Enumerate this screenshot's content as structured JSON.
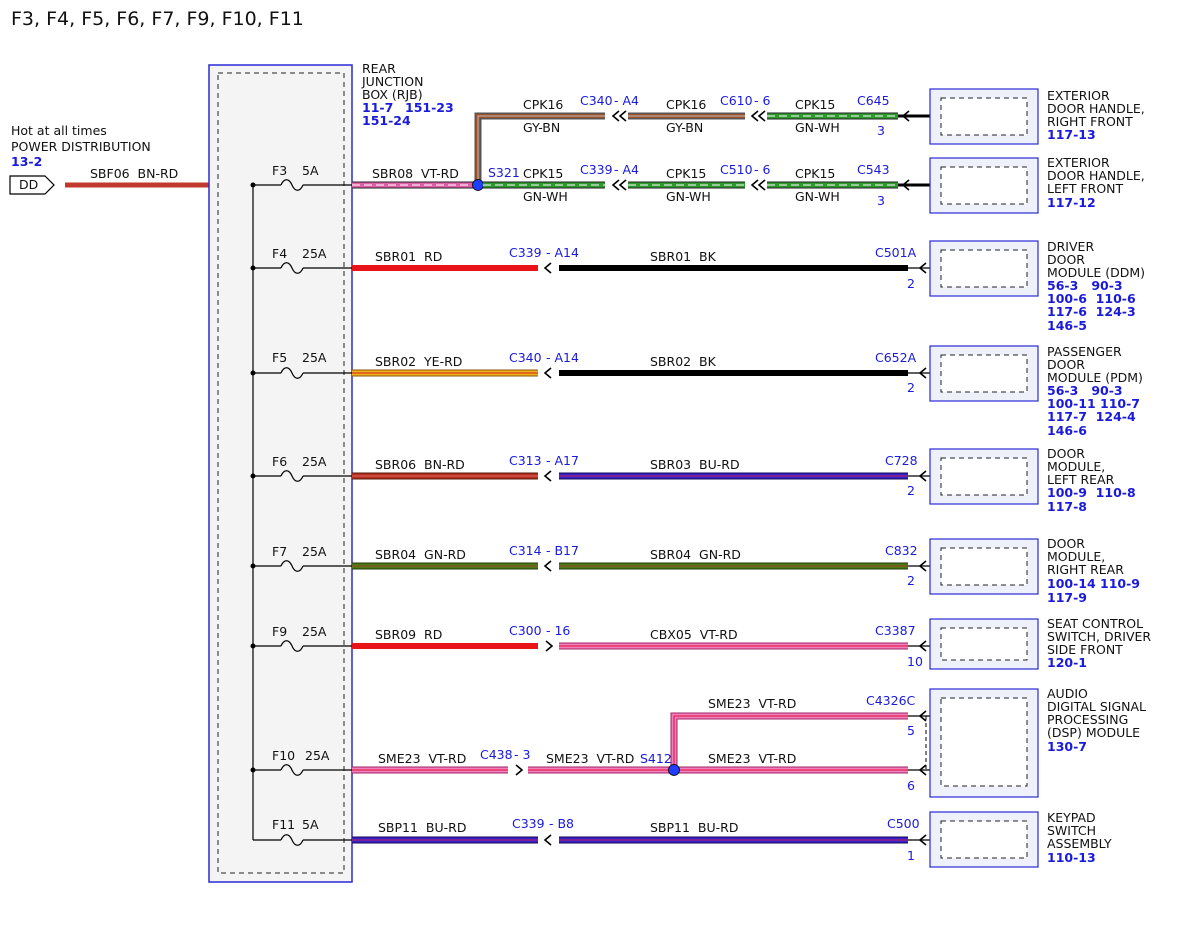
{
  "title": "F3, F4, F5, F6, F7, F9, F10, F11",
  "source": {
    "line1": "Hot at all times",
    "line2": "POWER DISTRIBUTION",
    "ref": "13-2",
    "connector": "DD",
    "wire": "SBF06  BN-RD"
  },
  "rjb": {
    "lines": [
      "REAR",
      "JUNCTION",
      "BOX (RJB)"
    ],
    "refs_line1a": "11-7",
    "refs_line1b": "151-23",
    "refs_line2": "151-24"
  },
  "fuses": [
    {
      "label": "F3",
      "amps": "5A"
    },
    {
      "label": "F4",
      "amps": "25A"
    },
    {
      "label": "F5",
      "amps": "25A"
    },
    {
      "label": "F6",
      "amps": "25A"
    },
    {
      "label": "F7",
      "amps": "25A"
    },
    {
      "label": "F9",
      "amps": "25A"
    },
    {
      "label": "F10",
      "amps": "25A"
    },
    {
      "label": "F11",
      "amps": "5A"
    }
  ],
  "wires": {
    "f3": "SBR08  VT-RD",
    "f4a": "SBR01  RD",
    "f4b": "SBR01  BK",
    "f5a": "SBR02  YE-RD",
    "f5b": "SBR02  BK",
    "f6a": "SBR06  BN-RD",
    "f6b": "SBR03  BU-RD",
    "f7a": "SBR04  GN-RD",
    "f7b": "SBR04  GN-RD",
    "f9a": "SBR09  RD",
    "f9b": "CBX05  VT-RD",
    "f10a": "SME23  VT-RD",
    "f10b": "SME23  VT-RD",
    "f10c": "SME23  VT-RD",
    "f10d": "SME23  VT-RD",
    "f11a": "SBP11  BU-RD",
    "f11b": "SBP11  BU-RD",
    "cpk16": "CPK16",
    "cpk15": "CPK15",
    "gybn": "GY-BN",
    "gnwh": "GN-WH"
  },
  "splices": {
    "s321": "S321",
    "s412": "S412"
  },
  "inline_connectors": {
    "c340a4": "C340",
    "a4": "- A4",
    "c610": "C610",
    "six": "- 6",
    "c339a4": "C339",
    "c510": "C510",
    "c339": "C339",
    "a14": "- A14",
    "c340": "C340",
    "c313": "C313",
    "a17": "- A17",
    "c314": "C314",
    "b17": "- B17",
    "c300": "C300",
    "d16": "- 16",
    "c438": "C438",
    "d3": "- 3",
    "b8": "- B8"
  },
  "components": [
    {
      "connector": "C645",
      "pin": "3",
      "lines": [
        "EXTERIOR",
        "DOOR HANDLE,",
        "RIGHT FRONT"
      ],
      "refs": [
        "117-13"
      ]
    },
    {
      "connector": "C543",
      "pin": "3",
      "lines": [
        "EXTERIOR",
        "DOOR HANDLE,",
        "LEFT FRONT"
      ],
      "refs": [
        "117-12"
      ]
    },
    {
      "connector": "C501A",
      "pin": "2",
      "lines": [
        "DRIVER",
        "DOOR",
        "MODULE (DDM)"
      ],
      "refs": [
        "56-3   90-3",
        "100-6  110-6",
        "117-6  124-3",
        "146-5"
      ]
    },
    {
      "connector": "C652A",
      "pin": "2",
      "lines": [
        "PASSENGER",
        "DOOR",
        "MODULE (PDM)"
      ],
      "refs": [
        "56-3   90-3",
        "100-11 110-7",
        "117-7  124-4",
        "146-6"
      ]
    },
    {
      "connector": "C728",
      "pin": "2",
      "lines": [
        "DOOR",
        "MODULE,",
        "LEFT REAR"
      ],
      "refs": [
        "100-9  110-8",
        "117-8"
      ]
    },
    {
      "connector": "C832",
      "pin": "2",
      "lines": [
        "DOOR",
        "MODULE,",
        "RIGHT REAR"
      ],
      "refs": [
        "100-14 110-9",
        "117-9"
      ]
    },
    {
      "connector": "C3387",
      "pin": "10",
      "lines": [
        "SEAT CONTROL",
        "SWITCH, DRIVER",
        "SIDE FRONT"
      ],
      "refs": [
        "120-1"
      ]
    },
    {
      "connector": "C4326C",
      "pin": "5",
      "pin2": "6",
      "lines": [
        "AUDIO",
        "DIGITAL SIGNAL",
        "PROCESSING",
        "(DSP) MODULE"
      ],
      "refs": [
        "130-7"
      ]
    },
    {
      "connector": "C500",
      "pin": "1",
      "lines": [
        "KEYPAD",
        "SWITCH",
        "ASSEMBLY"
      ],
      "refs": [
        "110-13"
      ]
    }
  ],
  "colors": {
    "BN-RD": "#c0392b",
    "VT-RD": "#e060a8",
    "RD": "#e8141a",
    "BK": "#000000",
    "YE-RD": "#e8a020",
    "BU-RD": "#2a1ab8",
    "GN-RD": "#3d6e10",
    "GN-WH": "#2e9a2e",
    "GY-BN": "#8a4a3a",
    "frame": "#2a2ad6",
    "label_blue": "#1a1adb"
  }
}
